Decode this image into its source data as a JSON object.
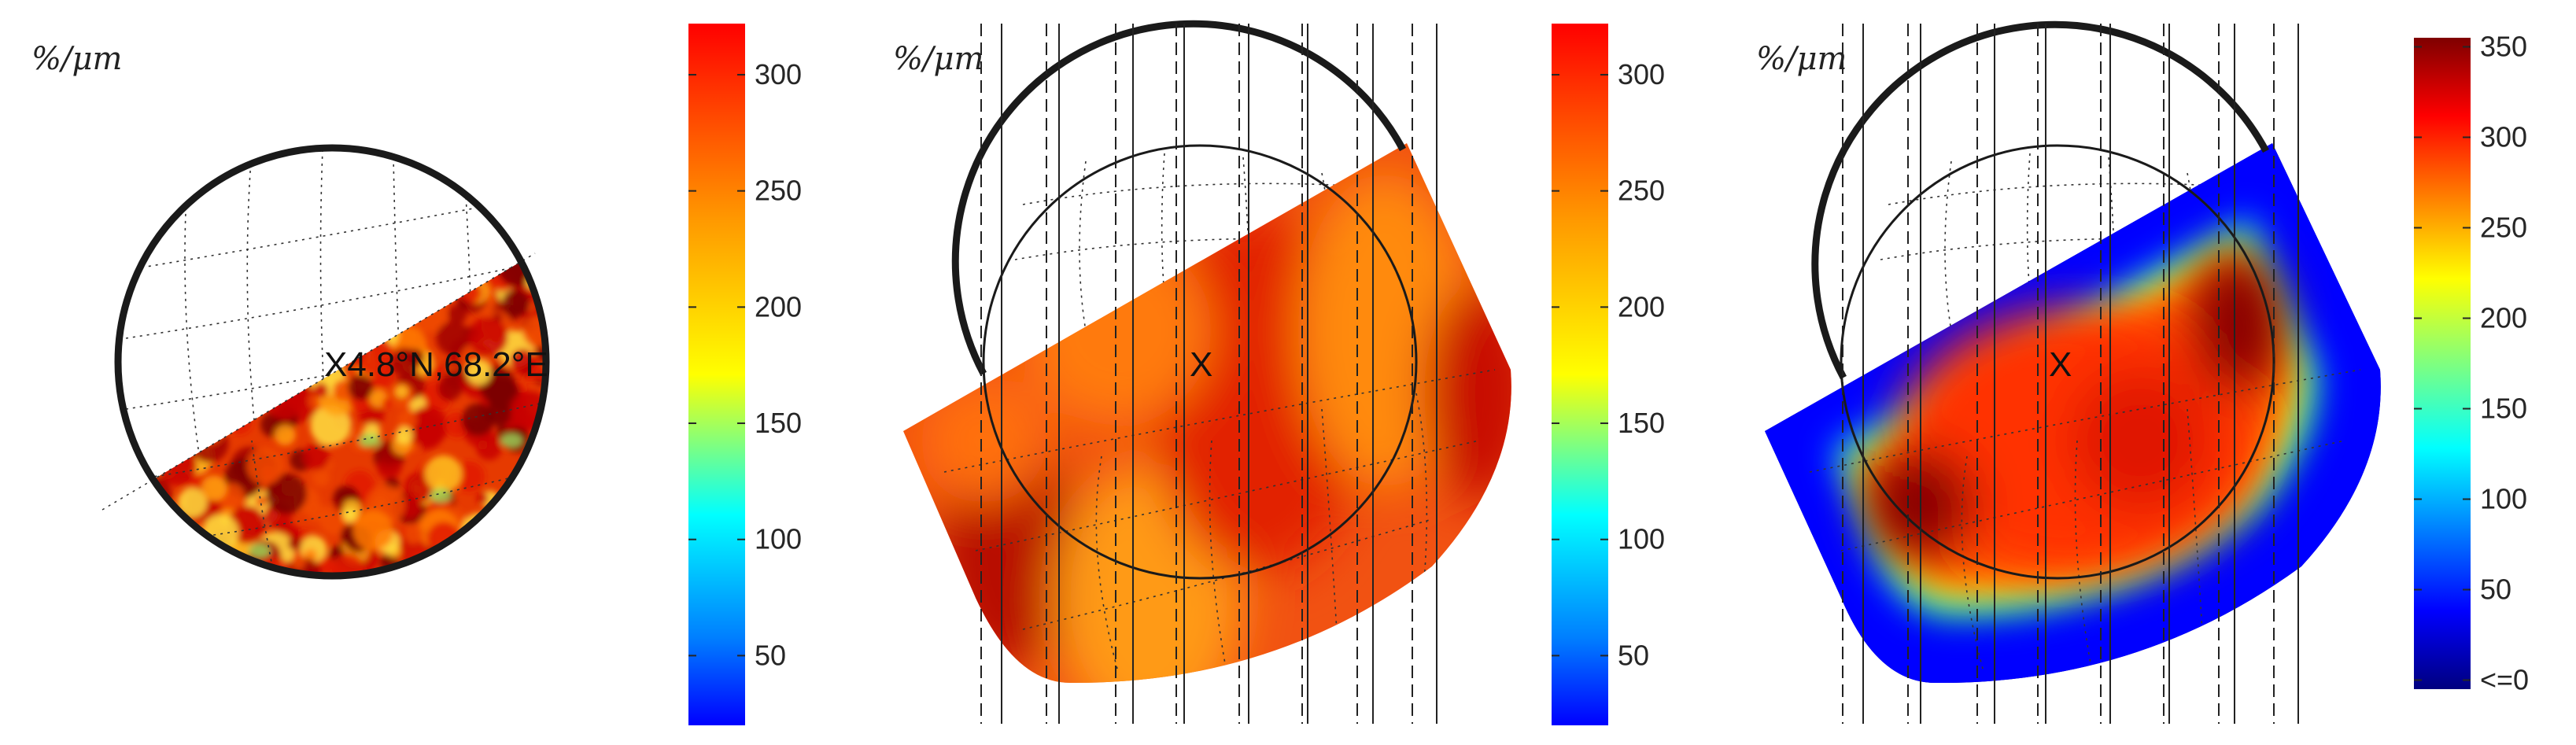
{
  "chart_data": [
    {
      "type": "heatmap",
      "panel": "left",
      "unit_label": "%/μm",
      "annotation": "X4.8°N,68.2°E",
      "colorbar": {
        "colormap": "jet",
        "range": [
          20,
          322
        ],
        "ticks": [
          "50",
          "100",
          "150",
          "200",
          "250",
          "300"
        ]
      },
      "value_range": [
        150,
        320
      ]
    },
    {
      "type": "heatmap",
      "panel": "middle",
      "unit_label": "%/μm",
      "annotation": "X",
      "colorbar": {
        "colormap": "jet",
        "range": [
          20,
          322
        ],
        "ticks": [
          "50",
          "100",
          "150",
          "200",
          "250",
          "300"
        ]
      },
      "value_range": [
        255,
        320
      ]
    },
    {
      "type": "heatmap",
      "panel": "right",
      "unit_label": "%/μm",
      "annotation": "X",
      "colorbar": {
        "colormap": "jet",
        "range": [
          -5,
          355
        ],
        "ticks": [
          "<=0",
          "50",
          "100",
          "150",
          "200",
          "250",
          "300",
          "350"
        ]
      },
      "value_range": [
        0,
        350
      ]
    }
  ],
  "colors": {
    "jet": [
      "#00007f",
      "#0000ff",
      "#007fff",
      "#00ffff",
      "#7fff7f",
      "#ffff00",
      "#ff7f00",
      "#ff0000",
      "#7f0000"
    ],
    "rim": "#1a1a1a"
  }
}
